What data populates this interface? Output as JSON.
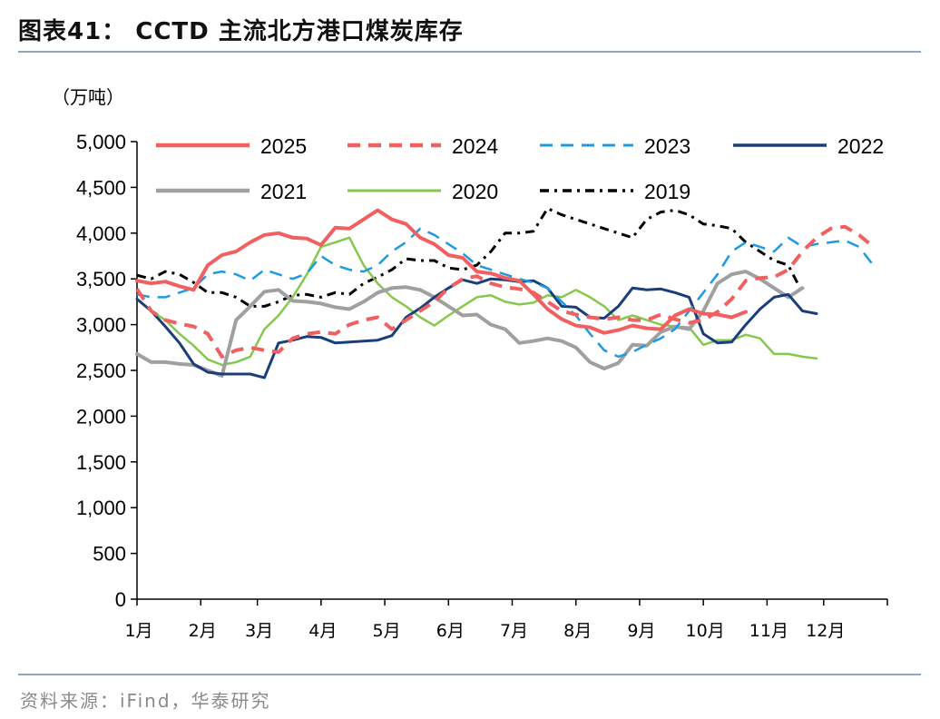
{
  "title": "图表41：  CCTD 主流北方港口煤炭库存",
  "source": "资料来源：iFind，华泰研究",
  "chart_data": {
    "type": "line",
    "unit_label": "（万吨）",
    "ylim": [
      0,
      5000
    ],
    "y_ticks": [
      0,
      500,
      1000,
      1500,
      2000,
      2500,
      3000,
      3500,
      4000,
      4500,
      5000
    ],
    "y_tick_labels": [
      "0",
      "500",
      "1,000",
      "1,500",
      "2,000",
      "2,500",
      "3,000",
      "3,500",
      "4,000",
      "4,500",
      "5,000"
    ],
    "xlim": [
      0,
      53
    ],
    "x_ticks": [
      0,
      4.5,
      8.5,
      13,
      17.5,
      22,
      26.5,
      31,
      35.5,
      40,
      44.5,
      48.5
    ],
    "x_tick_labels": [
      "1月",
      "2月",
      "3月",
      "4月",
      "5月",
      "6月",
      "7月",
      "8月",
      "9月",
      "10月",
      "11月",
      "12月"
    ],
    "x_label_offsets": [
      0,
      0,
      0,
      0,
      0,
      0,
      0,
      0,
      0,
      0,
      0,
      0
    ],
    "legend_position": "top",
    "series": [
      {
        "name": "2025",
        "color": "#f16060",
        "style": "solid",
        "width": 4,
        "values": [
          3480,
          3450,
          3470,
          3420,
          3380,
          3650,
          3760,
          3800,
          3900,
          3980,
          4000,
          3950,
          3940,
          3870,
          4060,
          4050,
          4150,
          4250,
          4150,
          4100,
          3950,
          3880,
          3760,
          3730,
          3580,
          3560,
          3510,
          3480,
          3330,
          3170,
          3060,
          2990,
          2970,
          2910,
          2940,
          2990,
          2960,
          2950,
          3100,
          3170,
          3120,
          3110,
          3080,
          3140
        ]
      },
      {
        "name": "2024",
        "color": "#f16060",
        "style": "dash",
        "width": 4,
        "values": [
          3390,
          3150,
          3050,
          3010,
          2980,
          2900,
          2650,
          2720,
          2750,
          2720,
          2700,
          2850,
          2900,
          2920,
          2900,
          3000,
          3050,
          3080,
          2950,
          3050,
          3150,
          3250,
          3400,
          3500,
          3530,
          3450,
          3410,
          3390,
          3350,
          3250,
          3150,
          3110,
          3080,
          3060,
          3080,
          3050,
          3050,
          3110,
          3060,
          3020,
          3050,
          3140,
          3280,
          3480,
          3510,
          3520,
          3600,
          3800,
          3950,
          4050,
          4070,
          3980,
          3850
        ]
      },
      {
        "name": "2023",
        "color": "#1e9be0",
        "style": "dash",
        "width": 2.5,
        "values": [
          3330,
          3300,
          3300,
          3350,
          3400,
          3550,
          3580,
          3550,
          3480,
          3600,
          3550,
          3500,
          3560,
          3750,
          3650,
          3600,
          3580,
          3650,
          3800,
          3900,
          4050,
          3980,
          3880,
          3780,
          3650,
          3600,
          3550,
          3500,
          3460,
          3400,
          3250,
          3100,
          2900,
          2720,
          2650,
          2700,
          2780,
          2850,
          2950,
          3150,
          3350,
          3550,
          3800,
          3900,
          3850,
          3800,
          3950,
          3850,
          3880,
          3900,
          3920,
          3850,
          3650
        ]
      },
      {
        "name": "2022",
        "color": "#1a3e7a",
        "style": "solid",
        "width": 3,
        "values": [
          3280,
          3150,
          2980,
          2800,
          2570,
          2480,
          2460,
          2460,
          2460,
          2420,
          2800,
          2830,
          2870,
          2860,
          2800,
          2810,
          2820,
          2830,
          2880,
          3080,
          3180,
          3300,
          3400,
          3490,
          3450,
          3500,
          3490,
          3470,
          3480,
          3400,
          3200,
          3190,
          3080,
          3070,
          3200,
          3400,
          3380,
          3390,
          3350,
          3300,
          2900,
          2800,
          2810,
          3000,
          3170,
          3300,
          3330,
          3150,
          3120
        ]
      },
      {
        "name": "2021",
        "color": "#a0a0a0",
        "style": "solid",
        "width": 4,
        "values": [
          2680,
          2590,
          2590,
          2570,
          2560,
          2500,
          2440,
          3050,
          3200,
          3360,
          3380,
          3260,
          3250,
          3230,
          3190,
          3170,
          3250,
          3350,
          3400,
          3410,
          3380,
          3300,
          3200,
          3100,
          3110,
          3000,
          2950,
          2800,
          2820,
          2850,
          2820,
          2750,
          2590,
          2520,
          2580,
          2780,
          2770,
          2920,
          2980,
          2950,
          3150,
          3450,
          3550,
          3580,
          3500,
          3400,
          3300,
          3400
        ]
      },
      {
        "name": "2020",
        "color": "#86c84d",
        "style": "solid",
        "width": 2.5,
        "values": [
          3280,
          3150,
          3050,
          2900,
          2770,
          2620,
          2560,
          2590,
          2650,
          2950,
          3100,
          3300,
          3550,
          3850,
          3900,
          3950,
          3650,
          3450,
          3300,
          3200,
          3080,
          2990,
          3100,
          3200,
          3300,
          3320,
          3250,
          3220,
          3240,
          3320,
          3300,
          3380,
          3300,
          3200,
          3050,
          3100,
          3050,
          3000,
          2980,
          2970,
          2780,
          2830,
          2830,
          2890,
          2850,
          2680,
          2680,
          2650,
          2630
        ]
      },
      {
        "name": "2019",
        "color": "#000000",
        "style": "dashdot",
        "width": 3,
        "values": [
          3540,
          3500,
          3580,
          3550,
          3460,
          3350,
          3350,
          3300,
          3200,
          3200,
          3250,
          3320,
          3330,
          3300,
          3350,
          3330,
          3450,
          3520,
          3600,
          3720,
          3700,
          3700,
          3620,
          3600,
          3650,
          3800,
          4000,
          4000,
          4020,
          4270,
          4200,
          4150,
          4100,
          4050,
          4000,
          3950,
          4150,
          4230,
          4250,
          4200,
          4100,
          4080,
          4050,
          3900,
          3800,
          3700,
          3650,
          3350
        ]
      }
    ]
  }
}
